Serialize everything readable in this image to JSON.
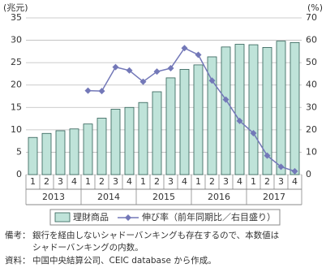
{
  "chart_data": {
    "type": "bar-line",
    "y_unit": "(兆元)",
    "y2_unit": "(%)",
    "categories": [
      "1",
      "2",
      "3",
      "4",
      "1",
      "2",
      "3",
      "4",
      "1",
      "2",
      "3",
      "4",
      "1",
      "2",
      "3",
      "4",
      "1",
      "2",
      "3",
      "4"
    ],
    "years": [
      "2013",
      "2014",
      "2015",
      "2016",
      "2017"
    ],
    "series": [
      {
        "name": "理財商品",
        "type": "bar",
        "color": "#bfe3d9",
        "values": [
          8.3,
          9.2,
          9.8,
          10.2,
          11.3,
          12.6,
          14.6,
          15.0,
          16.1,
          18.5,
          21.6,
          23.5,
          24.5,
          26.3,
          28.5,
          29.1,
          29.0,
          28.4,
          29.8,
          29.5
        ]
      },
      {
        "name": "伸び率（前年同期比／右目盛り）",
        "type": "line",
        "axis": "y2",
        "color": "#7378b8",
        "values": [
          null,
          null,
          null,
          null,
          37.5,
          37.3,
          48,
          46.5,
          41.5,
          46,
          47.5,
          56.5,
          53.5,
          42,
          33.5,
          24,
          18.5,
          8.5,
          3.5,
          1.5
        ]
      }
    ],
    "ylim": [
      0,
      35
    ],
    "yticks": [
      0,
      5,
      10,
      15,
      20,
      25,
      30,
      35
    ],
    "y2lim": [
      0,
      70
    ],
    "y2ticks": [
      0,
      10,
      20,
      30,
      40,
      50,
      60,
      70
    ],
    "grid": true
  },
  "notes": {
    "label": "備考：",
    "lines": [
      "銀行を経由しないシャドーバンキングも存在するので、本数値は",
      "シャドーバンキングの内数。"
    ]
  },
  "source": {
    "label": "資料：",
    "text": "中国中央結算公司、CEIC database から作成。"
  }
}
